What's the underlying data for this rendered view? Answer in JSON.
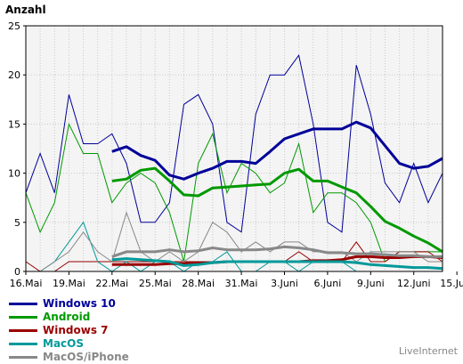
{
  "chart_data": {
    "type": "line",
    "ylabel": "Anzahl",
    "ylim": [
      0,
      25
    ],
    "yticks": [
      "0",
      "5",
      "10",
      "15",
      "20",
      "25"
    ],
    "xtick_labels": [
      "16.Mai",
      "19.Mai",
      "22.Mai",
      "25.Mai",
      "28.Mai",
      "31.Mai",
      "3.Juni",
      "6.Juni",
      "9.Juni",
      "12.Juni",
      "15.Juni"
    ],
    "grid": true,
    "legend_position": "bottom-left",
    "series": [
      {
        "name": "Windows 10",
        "color": "#000099",
        "daily": [
          8,
          12,
          8,
          18,
          13,
          13,
          14,
          11,
          5,
          5,
          7,
          17,
          18,
          15,
          5,
          4,
          16,
          20,
          20,
          22,
          15,
          5,
          4,
          21,
          16,
          9,
          7,
          11,
          7,
          10
        ],
        "average": [
          null,
          null,
          null,
          null,
          null,
          null,
          12.2,
          12.7,
          11.8,
          11.3,
          9.8,
          9.4,
          10.0,
          10.5,
          11.2,
          11.2,
          11.0,
          12.2,
          13.5,
          14.0,
          14.5,
          14.5,
          14.5,
          15.2,
          14.6,
          12.8,
          11.0,
          10.5,
          10.7,
          11.5
        ]
      },
      {
        "name": "Android",
        "color": "#009900",
        "daily": [
          8,
          4,
          7,
          15,
          12,
          12,
          7,
          9,
          10,
          9,
          6,
          1,
          11,
          14,
          8,
          11,
          10,
          8,
          9,
          13,
          6,
          8,
          8,
          7,
          5,
          1,
          2,
          2,
          2,
          2
        ],
        "average": [
          null,
          null,
          null,
          null,
          null,
          null,
          9.2,
          9.4,
          10.3,
          10.5,
          9.2,
          7.8,
          7.7,
          8.5,
          8.6,
          8.7,
          8.8,
          8.9,
          10.0,
          10.4,
          9.2,
          9.2,
          8.6,
          8.0,
          6.6,
          5.1,
          4.4,
          3.6,
          2.9,
          2.0
        ]
      },
      {
        "name": "Windows 7",
        "color": "#990000",
        "daily": [
          1,
          0,
          0,
          1,
          1,
          1,
          1,
          1,
          1,
          1,
          1,
          1,
          1,
          1,
          1,
          1,
          1,
          1,
          1,
          2,
          1,
          1,
          1,
          3,
          1,
          1,
          2,
          2,
          2,
          1
        ],
        "average": [
          null,
          null,
          null,
          null,
          null,
          null,
          0.7,
          0.7,
          0.7,
          0.7,
          0.8,
          0.8,
          0.9,
          0.9,
          1.0,
          1.0,
          1.0,
          1.0,
          1.0,
          1.0,
          1.1,
          1.1,
          1.2,
          1.5,
          1.5,
          1.4,
          1.4,
          1.5,
          1.5,
          1.4
        ]
      },
      {
        "name": "MacOS",
        "color": "#009999",
        "daily": [
          0,
          0,
          1,
          3,
          5,
          1,
          0,
          1,
          0,
          1,
          1,
          0,
          1,
          1,
          2,
          0,
          0,
          1,
          1,
          0,
          1,
          1,
          1,
          0,
          0,
          0,
          0,
          0,
          0,
          0
        ],
        "average": [
          null,
          null,
          null,
          null,
          null,
          null,
          1.2,
          1.3,
          1.2,
          1.1,
          1.0,
          0.6,
          0.7,
          0.9,
          1.0,
          1.0,
          1.0,
          1.0,
          1.0,
          1.0,
          1.0,
          1.0,
          1.0,
          0.9,
          0.7,
          0.6,
          0.5,
          0.4,
          0.4,
          0.3
        ]
      },
      {
        "name": "MacOS/iPhone",
        "color": "#888888",
        "daily": [
          0,
          0,
          1,
          2,
          4,
          2,
          1,
          6,
          2,
          1,
          2,
          1,
          2,
          5,
          4,
          2,
          3,
          2,
          3,
          3,
          2,
          2,
          2,
          1,
          2,
          2,
          2,
          2,
          1,
          1
        ],
        "average": [
          null,
          null,
          null,
          null,
          null,
          null,
          1.5,
          2.0,
          2.0,
          2.0,
          2.2,
          2.0,
          2.1,
          2.4,
          2.2,
          2.2,
          2.2,
          2.3,
          2.5,
          2.4,
          2.2,
          1.9,
          1.9,
          1.8,
          1.8,
          1.7,
          1.6,
          1.6,
          1.5,
          1.5
        ]
      }
    ]
  },
  "footer": {
    "credit": "LiveInternet"
  }
}
